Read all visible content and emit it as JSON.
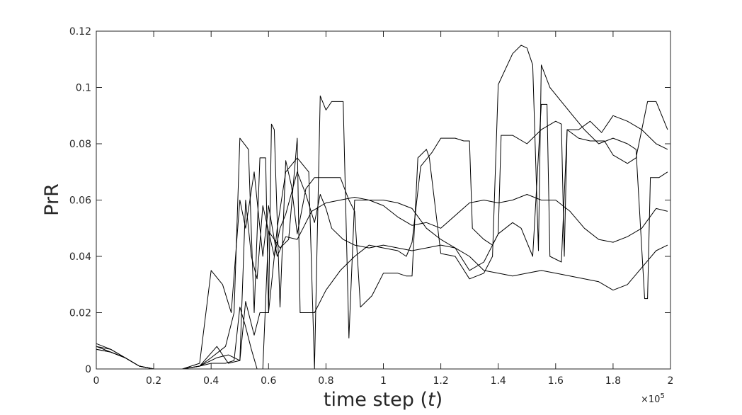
{
  "chart_data": {
    "type": "line",
    "title": "",
    "xlabel_text": "time step (",
    "xlabel_var": "t",
    "xlabel_close": ")",
    "ylabel": "PrR",
    "xlim": [
      0,
      2
    ],
    "ylim": [
      0,
      0.12
    ],
    "x_exponent_label": "×10",
    "x_exponent_power": "5",
    "x_ticks": [
      0,
      0.2,
      0.4,
      0.6,
      0.8,
      1,
      1.2,
      1.4,
      1.6,
      1.8,
      2
    ],
    "x_tick_labels": [
      "0",
      "0.2",
      "0.4",
      "0.6",
      "0.8",
      "1",
      "1.2",
      "1.4",
      "1.6",
      "1.8",
      "2"
    ],
    "y_ticks": [
      0,
      0.02,
      0.04,
      0.06,
      0.08,
      0.1,
      0.12
    ],
    "y_tick_labels": [
      "0",
      "0.02",
      "0.04",
      "0.06",
      "0.08",
      "0.1",
      "0.12"
    ],
    "grid": false,
    "line_color": "#000000",
    "series": [
      {
        "points": [
          [
            0,
            0.009
          ],
          [
            0.05,
            0.007
          ],
          [
            0.1,
            0.004
          ],
          [
            0.15,
            0.001
          ],
          [
            0.2,
            0
          ],
          [
            0.3,
            0
          ],
          [
            0.36,
            0.002
          ],
          [
            0.4,
            0.035
          ],
          [
            0.44,
            0.03
          ],
          [
            0.47,
            0.02
          ],
          [
            0.5,
            0.06
          ],
          [
            0.52,
            0.05
          ],
          [
            0.55,
            0.07
          ],
          [
            0.58,
            0.04
          ],
          [
            0.6,
            0.058
          ],
          [
            0.63,
            0.04
          ],
          [
            0.66,
            0.047
          ],
          [
            0.7,
            0.046
          ],
          [
            0.72,
            0.05
          ],
          [
            0.75,
            0.056
          ],
          [
            0.8,
            0.059
          ],
          [
            0.85,
            0.06
          ],
          [
            0.9,
            0.061
          ],
          [
            0.95,
            0.06
          ],
          [
            1.0,
            0.058
          ],
          [
            1.05,
            0.054
          ],
          [
            1.1,
            0.051
          ],
          [
            1.15,
            0.052
          ],
          [
            1.2,
            0.05
          ],
          [
            1.3,
            0.059
          ],
          [
            1.35,
            0.06
          ],
          [
            1.4,
            0.059
          ],
          [
            1.45,
            0.06
          ],
          [
            1.5,
            0.062
          ],
          [
            1.55,
            0.06
          ],
          [
            1.6,
            0.06
          ],
          [
            1.65,
            0.056
          ],
          [
            1.7,
            0.05
          ],
          [
            1.75,
            0.046
          ],
          [
            1.8,
            0.045
          ],
          [
            1.85,
            0.047
          ],
          [
            1.9,
            0.05
          ],
          [
            1.95,
            0.057
          ],
          [
            1.99,
            0.056
          ]
        ]
      },
      {
        "points": [
          [
            0,
            0.008
          ],
          [
            0.05,
            0.007
          ],
          [
            0.1,
            0.004
          ],
          [
            0.15,
            0.001
          ],
          [
            0.2,
            0
          ],
          [
            0.3,
            0
          ],
          [
            0.36,
            0.001
          ],
          [
            0.4,
            0.004
          ],
          [
            0.45,
            0.008
          ],
          [
            0.48,
            0.02
          ],
          [
            0.5,
            0.082
          ],
          [
            0.53,
            0.078
          ],
          [
            0.55,
            0.02
          ],
          [
            0.57,
            0.075
          ],
          [
            0.59,
            0.075
          ],
          [
            0.6,
            0.02
          ],
          [
            0.61,
            0.087
          ],
          [
            0.62,
            0.085
          ],
          [
            0.64,
            0.022
          ],
          [
            0.66,
            0.074
          ],
          [
            0.68,
            0.065
          ],
          [
            0.7,
            0.048
          ],
          [
            0.73,
            0.064
          ],
          [
            0.76,
            0.068
          ],
          [
            0.8,
            0.068
          ],
          [
            0.85,
            0.068
          ],
          [
            0.88,
            0.06
          ],
          [
            0.9,
            0.056
          ],
          [
            0.92,
            0.022
          ],
          [
            0.96,
            0.026
          ],
          [
            1.0,
            0.034
          ],
          [
            1.05,
            0.034
          ],
          [
            1.08,
            0.033
          ],
          [
            1.1,
            0.033
          ],
          [
            1.12,
            0.075
          ],
          [
            1.15,
            0.078
          ],
          [
            1.16,
            0.075
          ],
          [
            1.2,
            0.041
          ],
          [
            1.25,
            0.04
          ],
          [
            1.3,
            0.032
          ],
          [
            1.35,
            0.034
          ],
          [
            1.38,
            0.04
          ],
          [
            1.4,
            0.101
          ],
          [
            1.45,
            0.112
          ],
          [
            1.48,
            0.115
          ],
          [
            1.5,
            0.114
          ],
          [
            1.52,
            0.108
          ],
          [
            1.54,
            0.042
          ],
          [
            1.55,
            0.108
          ],
          [
            1.58,
            0.1
          ],
          [
            1.62,
            0.095
          ],
          [
            1.66,
            0.09
          ],
          [
            1.7,
            0.085
          ],
          [
            1.75,
            0.08
          ],
          [
            1.8,
            0.082
          ],
          [
            1.85,
            0.08
          ],
          [
            1.88,
            0.078
          ],
          [
            1.91,
            0.025
          ],
          [
            1.92,
            0.025
          ],
          [
            1.93,
            0.068
          ],
          [
            1.96,
            0.068
          ],
          [
            1.99,
            0.07
          ]
        ]
      },
      {
        "points": [
          [
            0,
            0.007
          ],
          [
            0.05,
            0.006
          ],
          [
            0.1,
            0.004
          ],
          [
            0.15,
            0.001
          ],
          [
            0.2,
            0
          ],
          [
            0.3,
            0
          ],
          [
            0.36,
            0.001
          ],
          [
            0.4,
            0.002
          ],
          [
            0.45,
            0.002
          ],
          [
            0.48,
            0.003
          ],
          [
            0.5,
            0.022
          ],
          [
            0.52,
            0.015
          ],
          [
            0.54,
            0.007
          ],
          [
            0.56,
            0
          ],
          [
            0.58,
            0
          ],
          [
            0.6,
            0.049
          ],
          [
            0.64,
            0.043
          ],
          [
            0.67,
            0.046
          ],
          [
            0.7,
            0.082
          ],
          [
            0.71,
            0.02
          ],
          [
            0.76,
            0.02
          ],
          [
            0.8,
            0.028
          ],
          [
            0.85,
            0.035
          ],
          [
            0.9,
            0.04
          ],
          [
            0.95,
            0.044
          ],
          [
            1.0,
            0.043
          ],
          [
            1.05,
            0.042
          ],
          [
            1.08,
            0.04
          ],
          [
            1.1,
            0.045
          ],
          [
            1.13,
            0.072
          ],
          [
            1.17,
            0.077
          ],
          [
            1.2,
            0.082
          ],
          [
            1.25,
            0.082
          ],
          [
            1.28,
            0.081
          ],
          [
            1.3,
            0.081
          ],
          [
            1.31,
            0.05
          ],
          [
            1.35,
            0.046
          ],
          [
            1.38,
            0.044
          ],
          [
            1.4,
            0.048
          ],
          [
            1.41,
            0.083
          ],
          [
            1.45,
            0.083
          ],
          [
            1.5,
            0.08
          ],
          [
            1.55,
            0.085
          ],
          [
            1.6,
            0.088
          ],
          [
            1.62,
            0.087
          ],
          [
            1.63,
            0.04
          ],
          [
            1.64,
            0.085
          ],
          [
            1.68,
            0.082
          ],
          [
            1.72,
            0.081
          ],
          [
            1.77,
            0.081
          ],
          [
            1.8,
            0.076
          ],
          [
            1.85,
            0.073
          ],
          [
            1.88,
            0.075
          ],
          [
            1.92,
            0.095
          ],
          [
            1.95,
            0.095
          ],
          [
            1.99,
            0.085
          ]
        ]
      },
      {
        "points": [
          [
            0,
            0.007
          ],
          [
            0.05,
            0.006
          ],
          [
            0.1,
            0.004
          ],
          [
            0.15,
            0.001
          ],
          [
            0.2,
            0
          ],
          [
            0.3,
            0
          ],
          [
            0.36,
            0.001
          ],
          [
            0.42,
            0.008
          ],
          [
            0.46,
            0.002
          ],
          [
            0.5,
            0.003
          ],
          [
            0.52,
            0.06
          ],
          [
            0.54,
            0.04
          ],
          [
            0.56,
            0.032
          ],
          [
            0.58,
            0.058
          ],
          [
            0.62,
            0.04
          ],
          [
            0.64,
            0.05
          ],
          [
            0.66,
            0.055
          ],
          [
            0.7,
            0.07
          ],
          [
            0.73,
            0.062
          ],
          [
            0.76,
            0.052
          ],
          [
            0.78,
            0.062
          ],
          [
            0.8,
            0.057
          ],
          [
            0.82,
            0.05
          ],
          [
            0.86,
            0.046
          ],
          [
            0.9,
            0.044
          ],
          [
            0.95,
            0.043
          ],
          [
            1.0,
            0.044
          ],
          [
            1.05,
            0.043
          ],
          [
            1.1,
            0.042
          ],
          [
            1.15,
            0.043
          ],
          [
            1.2,
            0.044
          ],
          [
            1.25,
            0.043
          ],
          [
            1.3,
            0.04
          ],
          [
            1.35,
            0.035
          ],
          [
            1.4,
            0.034
          ],
          [
            1.45,
            0.033
          ],
          [
            1.5,
            0.034
          ],
          [
            1.55,
            0.035
          ],
          [
            1.6,
            0.034
          ],
          [
            1.65,
            0.033
          ],
          [
            1.7,
            0.032
          ],
          [
            1.75,
            0.031
          ],
          [
            1.8,
            0.028
          ],
          [
            1.85,
            0.03
          ],
          [
            1.9,
            0.036
          ],
          [
            1.95,
            0.042
          ],
          [
            1.99,
            0.044
          ]
        ]
      },
      {
        "points": [
          [
            0,
            0.008
          ],
          [
            0.05,
            0.006
          ],
          [
            0.1,
            0.004
          ],
          [
            0.15,
            0.001
          ],
          [
            0.2,
            0
          ],
          [
            0.3,
            0
          ],
          [
            0.36,
            0.001
          ],
          [
            0.42,
            0.004
          ],
          [
            0.46,
            0.005
          ],
          [
            0.5,
            0.003
          ],
          [
            0.52,
            0.024
          ],
          [
            0.55,
            0.012
          ],
          [
            0.57,
            0.02
          ],
          [
            0.6,
            0.02
          ],
          [
            0.63,
            0.05
          ],
          [
            0.66,
            0.07
          ],
          [
            0.7,
            0.075
          ],
          [
            0.74,
            0.07
          ],
          [
            0.76,
            0
          ],
          [
            0.78,
            0.097
          ],
          [
            0.8,
            0.092
          ],
          [
            0.82,
            0.095
          ],
          [
            0.86,
            0.095
          ],
          [
            0.88,
            0.011
          ],
          [
            0.9,
            0.06
          ],
          [
            0.95,
            0.06
          ],
          [
            1.0,
            0.06
          ],
          [
            1.05,
            0.059
          ],
          [
            1.1,
            0.057
          ],
          [
            1.15,
            0.05
          ],
          [
            1.2,
            0.046
          ],
          [
            1.25,
            0.043
          ],
          [
            1.3,
            0.035
          ],
          [
            1.35,
            0.038
          ],
          [
            1.4,
            0.048
          ],
          [
            1.45,
            0.052
          ],
          [
            1.48,
            0.05
          ],
          [
            1.52,
            0.04
          ],
          [
            1.55,
            0.094
          ],
          [
            1.57,
            0.094
          ],
          [
            1.58,
            0.04
          ],
          [
            1.62,
            0.038
          ],
          [
            1.64,
            0.085
          ],
          [
            1.68,
            0.085
          ],
          [
            1.72,
            0.088
          ],
          [
            1.76,
            0.084
          ],
          [
            1.8,
            0.09
          ],
          [
            1.85,
            0.088
          ],
          [
            1.9,
            0.085
          ],
          [
            1.95,
            0.08
          ],
          [
            1.99,
            0.078
          ]
        ]
      }
    ]
  }
}
